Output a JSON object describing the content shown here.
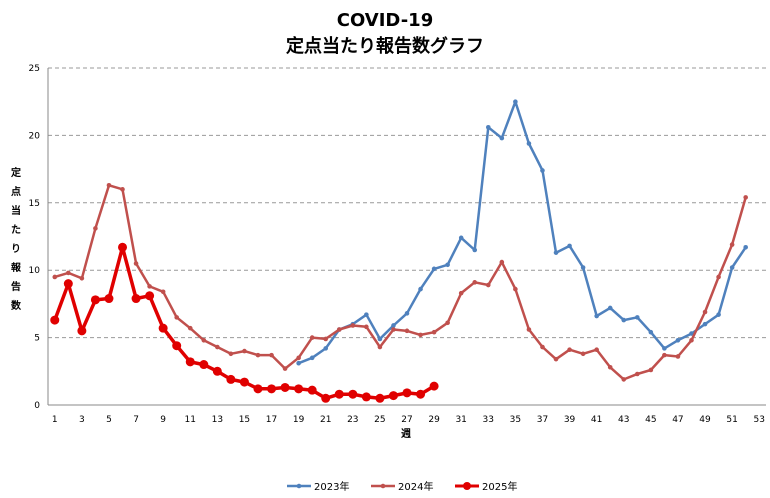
{
  "chart_data": {
    "type": "line",
    "title_line1": "COVID-19",
    "title_line2": "定点当たり報告数グラフ",
    "xlabel": "週",
    "ylabel": "定点当たり報告数",
    "xlim": [
      1,
      53
    ],
    "ylim": [
      0,
      25
    ],
    "x_ticks": [
      1,
      3,
      5,
      7,
      9,
      11,
      13,
      15,
      17,
      19,
      21,
      23,
      25,
      27,
      29,
      31,
      33,
      35,
      37,
      39,
      41,
      43,
      45,
      47,
      49,
      51,
      53
    ],
    "y_ticks": [
      0,
      5,
      10,
      15,
      20,
      25
    ],
    "grid": true,
    "legend_position": "bottom",
    "series": [
      {
        "name": "2023年",
        "color": "#4f81bd",
        "marker_size": "small",
        "x": [
          19,
          20,
          21,
          22,
          23,
          24,
          25,
          26,
          27,
          28,
          29,
          30,
          31,
          32,
          33,
          34,
          35,
          36,
          37,
          38,
          39,
          40,
          41,
          42,
          43,
          44,
          45,
          46,
          47,
          48,
          49,
          50,
          51,
          52
        ],
        "values": [
          3.1,
          3.5,
          4.2,
          5.6,
          6.0,
          6.7,
          4.9,
          5.9,
          6.8,
          8.6,
          10.1,
          10.4,
          12.4,
          11.5,
          20.6,
          19.8,
          22.5,
          19.4,
          17.4,
          11.3,
          11.8,
          10.2,
          6.6,
          7.2,
          6.3,
          6.5,
          5.4,
          4.2,
          4.8,
          5.3,
          6.0,
          6.7,
          10.2,
          11.7
        ]
      },
      {
        "name": "2024年",
        "color": "#c0504d",
        "marker_size": "small",
        "x": [
          1,
          2,
          3,
          4,
          5,
          6,
          7,
          8,
          9,
          10,
          11,
          12,
          13,
          14,
          15,
          16,
          17,
          18,
          19,
          20,
          21,
          22,
          23,
          24,
          25,
          26,
          27,
          28,
          29,
          30,
          31,
          32,
          33,
          34,
          35,
          36,
          37,
          38,
          39,
          40,
          41,
          42,
          43,
          44,
          45,
          46,
          47,
          48,
          49,
          50,
          51,
          52
        ],
        "values": [
          9.5,
          9.8,
          9.4,
          13.1,
          16.3,
          16.0,
          10.5,
          8.8,
          8.4,
          6.5,
          5.7,
          4.8,
          4.3,
          3.8,
          4.0,
          3.7,
          3.7,
          2.7,
          3.5,
          5.0,
          4.9,
          5.6,
          5.9,
          5.8,
          4.3,
          5.6,
          5.5,
          5.2,
          5.4,
          6.1,
          8.3,
          9.1,
          8.9,
          10.6,
          8.6,
          5.6,
          4.3,
          3.4,
          4.1,
          3.8,
          4.1,
          2.8,
          1.9,
          2.3,
          2.6,
          3.7,
          3.6,
          4.8,
          6.9,
          9.5,
          11.9,
          15.4
        ]
      },
      {
        "name": "2025年",
        "color": "#e00000",
        "marker_size": "large",
        "x": [
          1,
          2,
          3,
          4,
          5,
          6,
          7,
          8,
          9,
          10,
          11,
          12,
          13,
          14,
          15,
          16,
          17,
          18,
          19,
          20,
          21,
          22,
          23,
          24,
          25,
          26,
          27,
          28,
          29
        ],
        "values": [
          6.3,
          9.0,
          5.5,
          7.8,
          7.9,
          11.7,
          7.9,
          8.1,
          5.7,
          4.4,
          3.2,
          3.0,
          2.5,
          1.9,
          1.7,
          1.2,
          1.2,
          1.3,
          1.2,
          1.1,
          0.5,
          0.8,
          0.8,
          0.6,
          0.5,
          0.7,
          0.9,
          0.8,
          1.4
        ]
      }
    ]
  }
}
